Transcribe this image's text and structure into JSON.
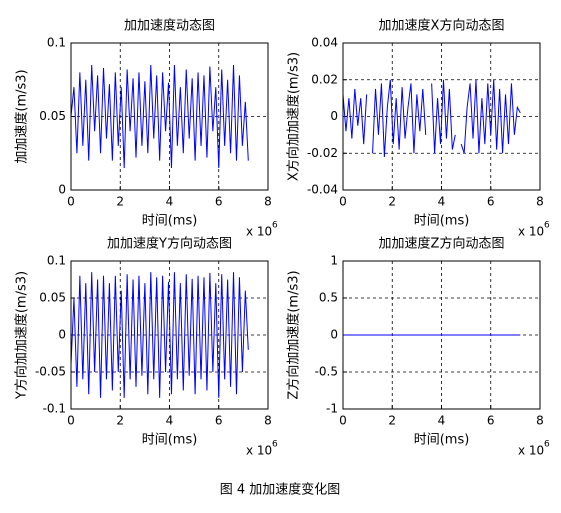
{
  "chart_data": [
    {
      "type": "line",
      "title": "加加速度动态图",
      "xlabel": "时间(ms)",
      "ylabel": "加加速度(m/s3)",
      "x_scale_label": "x 10",
      "x_scale_exponent": "6",
      "xlim": [
        0,
        8
      ],
      "xticks": [
        0,
        2,
        4,
        6,
        8
      ],
      "ylim": [
        0,
        0.1
      ],
      "yticks": [
        0,
        0.05,
        0.1
      ],
      "grid": true,
      "x": [
        0,
        0.12,
        0.24,
        0.36,
        0.48,
        0.6,
        0.72,
        0.84,
        0.96,
        1.08,
        1.2,
        1.32,
        1.44,
        1.56,
        1.68,
        1.8,
        1.92,
        2.04,
        2.16,
        2.28,
        2.4,
        2.52,
        2.64,
        2.76,
        2.88,
        3,
        3.12,
        3.24,
        3.36,
        3.48,
        3.6,
        3.72,
        3.84,
        3.96,
        4.08,
        4.2,
        4.32,
        4.44,
        4.56,
        4.68,
        4.8,
        4.92,
        5.04,
        5.16,
        5.28,
        5.4,
        5.52,
        5.64,
        5.76,
        5.88,
        6,
        6.12,
        6.24,
        6.36,
        6.48,
        6.6,
        6.72,
        6.84,
        6.96,
        7.08,
        7.2
      ],
      "series": [
        {
          "color": "#0000ff",
          "values": [
            0.05,
            0.07,
            0.025,
            0.08,
            0.03,
            0.075,
            0.02,
            0.085,
            0.04,
            0.078,
            0.025,
            0.083,
            0.035,
            0.072,
            0.02,
            0.08,
            0.03,
            0.07,
            0.015,
            0.082,
            0.04,
            0.076,
            0.022,
            0.08,
            0.03,
            0.074,
            0.025,
            0.085,
            0.035,
            0.078,
            0.02,
            0.08,
            0.04,
            0.073,
            0.015,
            0.085,
            0.03,
            0.07,
            0.025,
            0.082,
            0.035,
            0.076,
            0.02,
            0.08,
            0.03,
            0.078,
            0.022,
            0.084,
            0.04,
            0.07,
            0.015,
            0.082,
            0.03,
            0.075,
            0.025,
            0.085,
            0.02,
            0.078,
            0.03,
            0.06,
            0.02
          ]
        }
      ]
    },
    {
      "type": "line",
      "title": "加加速度X方向动态图",
      "xlabel": "时间(ms)",
      "ylabel": "X方向加加速度(m/s3)",
      "x_scale_label": "x 10",
      "x_scale_exponent": "6",
      "xlim": [
        0,
        8
      ],
      "xticks": [
        0,
        2,
        4,
        6,
        8
      ],
      "ylim": [
        -0.04,
        0.04
      ],
      "yticks": [
        -0.04,
        -0.02,
        0,
        0.02,
        0.04
      ],
      "grid": true,
      "x": [
        0,
        0.12,
        0.24,
        0.36,
        0.48,
        0.6,
        0.72,
        0.84,
        0.96,
        1.08,
        1.2,
        1.32,
        1.44,
        1.56,
        1.68,
        1.8,
        1.92,
        2.04,
        2.16,
        2.28,
        2.4,
        2.52,
        2.64,
        2.76,
        2.88,
        3,
        3.12,
        3.24,
        3.36,
        3.48,
        3.6,
        3.72,
        3.84,
        3.96,
        4.08,
        4.2,
        4.32,
        4.44,
        4.56,
        4.68,
        4.8,
        4.92,
        5.04,
        5.16,
        5.28,
        5.4,
        5.52,
        5.64,
        5.76,
        5.88,
        6,
        6.12,
        6.24,
        6.36,
        6.48,
        6.6,
        6.72,
        6.84,
        6.96,
        7.08,
        7.2
      ],
      "series": [
        {
          "color": "#0000ff",
          "values": [
            0.012,
            -0.008,
            0.01,
            -0.012,
            0.015,
            -0.005,
            0.01,
            -0.015,
            0.012,
            null,
            -0.02,
            0.015,
            -0.01,
            0.018,
            -0.022,
            0.005,
            0.02,
            -0.015,
            0.01,
            -0.018,
            0.016,
            -0.012,
            0.005,
            0.018,
            -0.02,
            0.012,
            -0.008,
            0.015,
            -0.01,
            null,
            0.018,
            -0.02,
            0.01,
            -0.015,
            0.02,
            -0.012,
            0.015,
            -0.018,
            -0.01,
            null,
            -0.015,
            -0.02,
            0.005,
            0.018,
            -0.012,
            0.02,
            -0.02,
            0.01,
            -0.015,
            0.018,
            -0.01,
            0.02,
            -0.018,
            0.015,
            -0.02,
            0.012,
            -0.015,
            0.018,
            -0.01,
            0.005,
            0.002
          ]
        }
      ]
    },
    {
      "type": "line",
      "title": "加加速度Y方向动态图",
      "xlabel": "时间(ms)",
      "ylabel": "Y方向加加速度(m/s3)",
      "x_scale_label": "x 10",
      "x_scale_exponent": "6",
      "xlim": [
        0,
        8
      ],
      "xticks": [
        0,
        2,
        4,
        6,
        8
      ],
      "ylim": [
        -0.1,
        0.1
      ],
      "yticks": [
        -0.1,
        -0.05,
        0,
        0.05,
        0.1
      ],
      "grid": true,
      "x": [
        0,
        0.12,
        0.24,
        0.36,
        0.48,
        0.6,
        0.72,
        0.84,
        0.96,
        1.08,
        1.2,
        1.32,
        1.44,
        1.56,
        1.68,
        1.8,
        1.92,
        2.04,
        2.16,
        2.28,
        2.4,
        2.52,
        2.64,
        2.76,
        2.88,
        3,
        3.12,
        3.24,
        3.36,
        3.48,
        3.6,
        3.72,
        3.84,
        3.96,
        4.08,
        4.2,
        4.32,
        4.44,
        4.56,
        4.68,
        4.8,
        4.92,
        5.04,
        5.16,
        5.28,
        5.4,
        5.52,
        5.64,
        5.76,
        5.88,
        6,
        6.12,
        6.24,
        6.36,
        6.48,
        6.6,
        6.72,
        6.84,
        6.96,
        7.08,
        7.2
      ],
      "series": [
        {
          "color": "#0000ff",
          "values": [
            -0.04,
            0.05,
            -0.07,
            0.08,
            -0.06,
            0.07,
            -0.08,
            0.085,
            -0.05,
            0.075,
            -0.085,
            0.08,
            -0.06,
            0.07,
            -0.075,
            0.08,
            -0.05,
            0.06,
            -0.085,
            0.082,
            -0.06,
            0.075,
            -0.07,
            0.08,
            -0.055,
            0.07,
            -0.08,
            0.085,
            -0.06,
            0.078,
            -0.085,
            0.08,
            -0.05,
            0.072,
            -0.08,
            0.085,
            -0.06,
            0.07,
            -0.075,
            0.082,
            -0.055,
            0.076,
            -0.08,
            0.08,
            -0.06,
            0.078,
            -0.075,
            0.084,
            -0.05,
            0.07,
            -0.085,
            0.082,
            -0.06,
            0.075,
            -0.07,
            0.085,
            -0.08,
            0.078,
            -0.05,
            0.06,
            -0.02
          ]
        }
      ]
    },
    {
      "type": "line",
      "title": "加加速度Z方向动态图",
      "xlabel": "时间(ms)",
      "ylabel": "Z方向加加速度(m/s3)",
      "x_scale_label": "x 10",
      "x_scale_exponent": "6",
      "xlim": [
        0,
        8
      ],
      "xticks": [
        0,
        2,
        4,
        6,
        8
      ],
      "ylim": [
        -1,
        1
      ],
      "yticks": [
        -1,
        -0.5,
        0,
        0.5,
        1
      ],
      "grid": true,
      "x": [
        0,
        7.2
      ],
      "series": [
        {
          "color": "#0000ff",
          "values": [
            0,
            0
          ]
        }
      ]
    }
  ],
  "caption": "图 4  加加速度变化图"
}
